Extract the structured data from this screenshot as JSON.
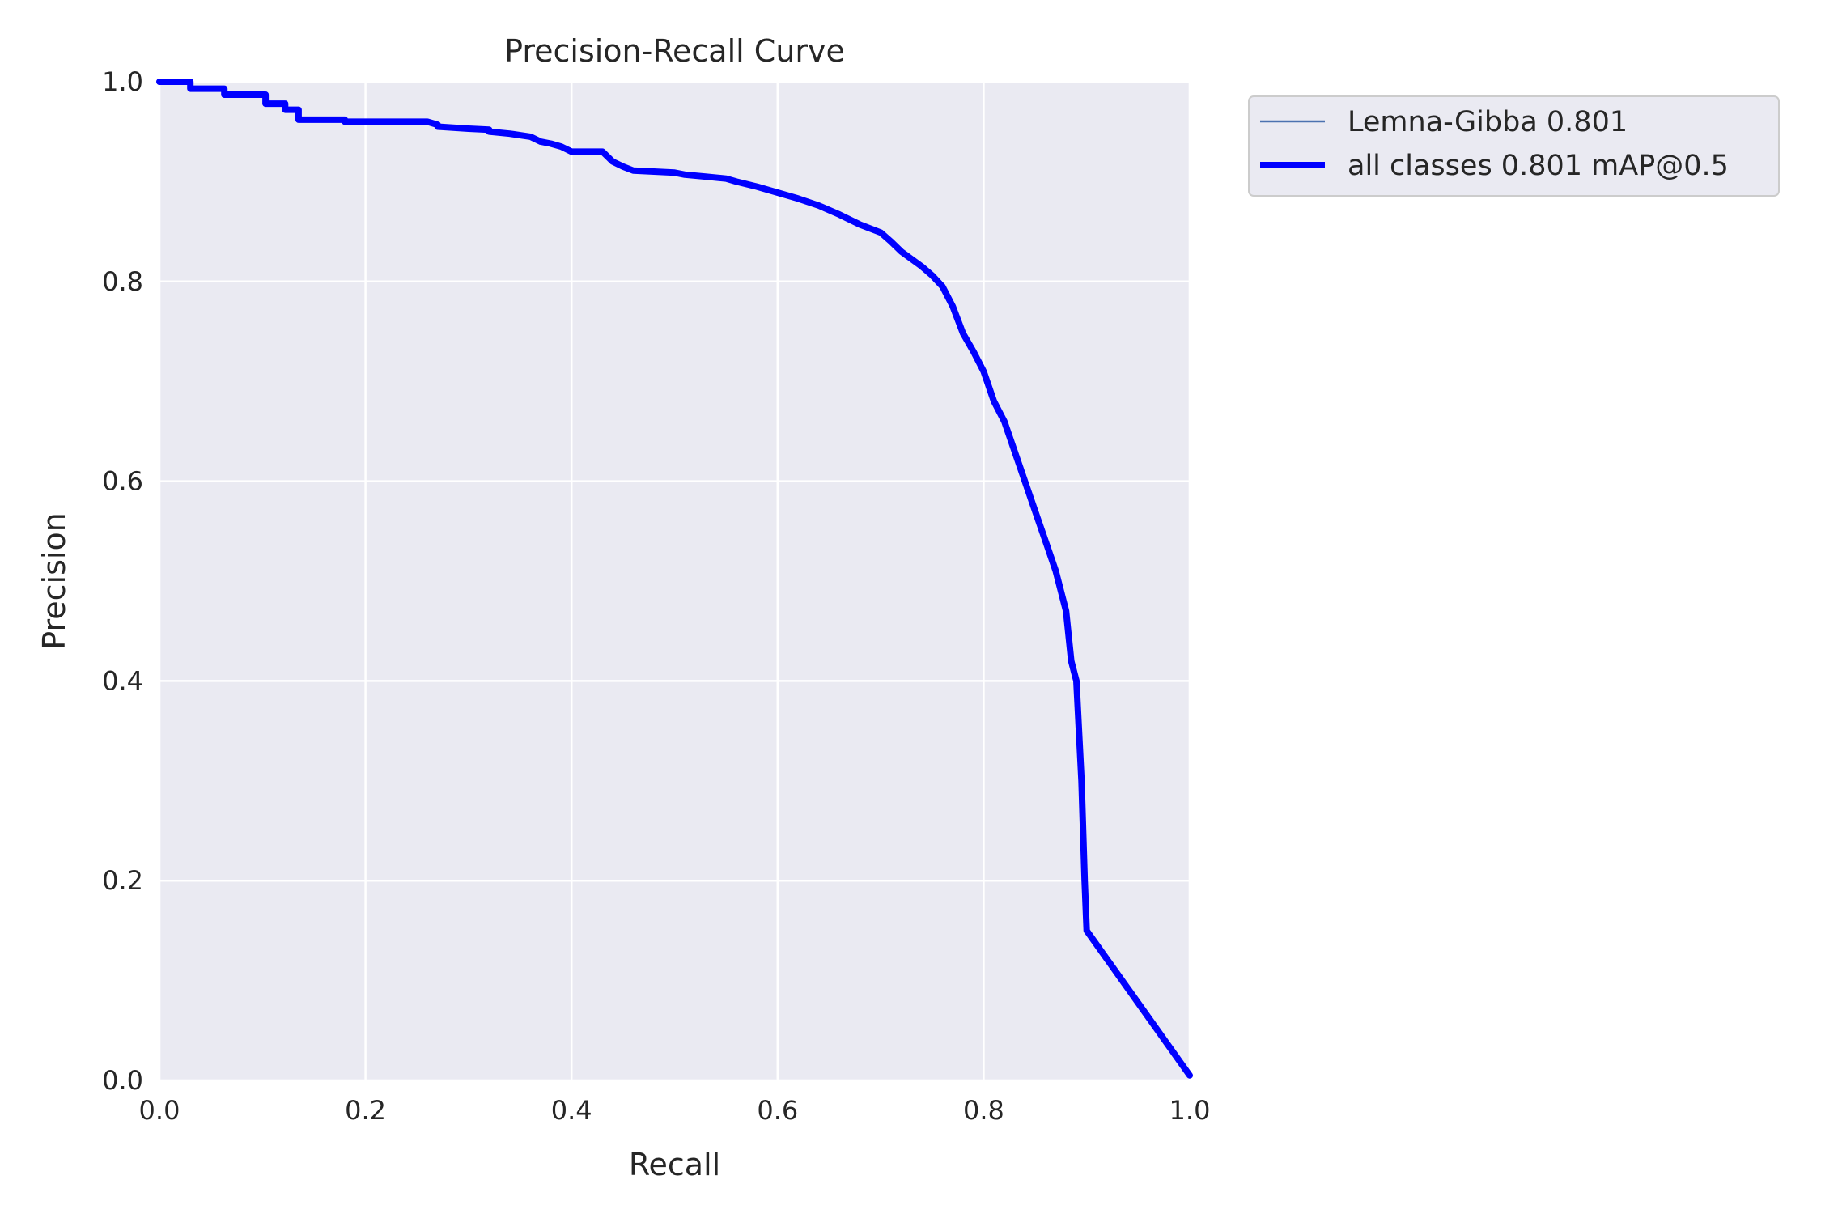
{
  "chart_data": {
    "type": "line",
    "title": "Precision-Recall Curve",
    "xlabel": "Recall",
    "ylabel": "Precision",
    "xlim": [
      0,
      1
    ],
    "ylim": [
      0,
      1
    ],
    "xticks": [
      "0.0",
      "0.2",
      "0.4",
      "0.6",
      "0.8",
      "1.0"
    ],
    "yticks": [
      "0.0",
      "0.2",
      "0.4",
      "0.6",
      "0.8",
      "1.0"
    ],
    "grid": true,
    "legend_placement": "outside-upper-right",
    "series": [
      {
        "name": "Lemna-Gibba 0.801",
        "color": "#4c72b0",
        "line": "thin",
        "x": [
          0.0,
          0.03,
          0.03,
          0.063,
          0.063,
          0.103,
          0.103,
          0.122,
          0.122,
          0.135,
          0.135,
          0.18,
          0.18,
          0.26,
          0.27,
          0.27,
          0.3,
          0.32,
          0.32,
          0.34,
          0.36,
          0.37,
          0.38,
          0.39,
          0.4,
          0.43,
          0.44,
          0.45,
          0.46,
          0.5,
          0.51,
          0.53,
          0.55,
          0.56,
          0.58,
          0.6,
          0.62,
          0.64,
          0.66,
          0.68,
          0.7,
          0.71,
          0.72,
          0.74,
          0.75,
          0.76,
          0.77,
          0.78,
          0.79,
          0.8,
          0.81,
          0.82,
          0.83,
          0.84,
          0.85,
          0.86,
          0.87,
          0.88,
          0.885,
          0.89,
          0.895,
          0.898,
          0.9,
          1.0
        ],
        "y": [
          1.0,
          1.0,
          0.993,
          0.993,
          0.987,
          0.987,
          0.978,
          0.978,
          0.972,
          0.972,
          0.962,
          0.962,
          0.96,
          0.96,
          0.957,
          0.955,
          0.953,
          0.952,
          0.95,
          0.948,
          0.945,
          0.94,
          0.938,
          0.935,
          0.93,
          0.93,
          0.92,
          0.915,
          0.911,
          0.909,
          0.907,
          0.905,
          0.903,
          0.9,
          0.895,
          0.889,
          0.883,
          0.876,
          0.867,
          0.857,
          0.849,
          0.84,
          0.83,
          0.815,
          0.806,
          0.795,
          0.775,
          0.748,
          0.73,
          0.71,
          0.68,
          0.66,
          0.63,
          0.6,
          0.57,
          0.54,
          0.51,
          0.47,
          0.42,
          0.4,
          0.3,
          0.2,
          0.15,
          0.005
        ]
      },
      {
        "name": "all classes 0.801 mAP@0.5",
        "color": "#0000ff",
        "line": "thick",
        "x": [
          0.0,
          0.03,
          0.03,
          0.063,
          0.063,
          0.103,
          0.103,
          0.122,
          0.122,
          0.135,
          0.135,
          0.18,
          0.18,
          0.26,
          0.27,
          0.27,
          0.3,
          0.32,
          0.32,
          0.34,
          0.36,
          0.37,
          0.38,
          0.39,
          0.4,
          0.43,
          0.44,
          0.45,
          0.46,
          0.5,
          0.51,
          0.53,
          0.55,
          0.56,
          0.58,
          0.6,
          0.62,
          0.64,
          0.66,
          0.68,
          0.7,
          0.71,
          0.72,
          0.74,
          0.75,
          0.76,
          0.77,
          0.78,
          0.79,
          0.8,
          0.81,
          0.82,
          0.83,
          0.84,
          0.85,
          0.86,
          0.87,
          0.88,
          0.885,
          0.89,
          0.895,
          0.898,
          0.9,
          1.0
        ],
        "y": [
          1.0,
          1.0,
          0.993,
          0.993,
          0.987,
          0.987,
          0.978,
          0.978,
          0.972,
          0.972,
          0.962,
          0.962,
          0.96,
          0.96,
          0.957,
          0.955,
          0.953,
          0.952,
          0.95,
          0.948,
          0.945,
          0.94,
          0.938,
          0.935,
          0.93,
          0.93,
          0.92,
          0.915,
          0.911,
          0.909,
          0.907,
          0.905,
          0.903,
          0.9,
          0.895,
          0.889,
          0.883,
          0.876,
          0.867,
          0.857,
          0.849,
          0.84,
          0.83,
          0.815,
          0.806,
          0.795,
          0.775,
          0.748,
          0.73,
          0.71,
          0.68,
          0.66,
          0.63,
          0.6,
          0.57,
          0.54,
          0.51,
          0.47,
          0.42,
          0.4,
          0.3,
          0.2,
          0.15,
          0.005
        ]
      }
    ],
    "colors": {
      "plot_background": "#eaeaf2",
      "grid": "#ffffff",
      "legend_border": "#cccccc",
      "text": "#262626"
    }
  }
}
